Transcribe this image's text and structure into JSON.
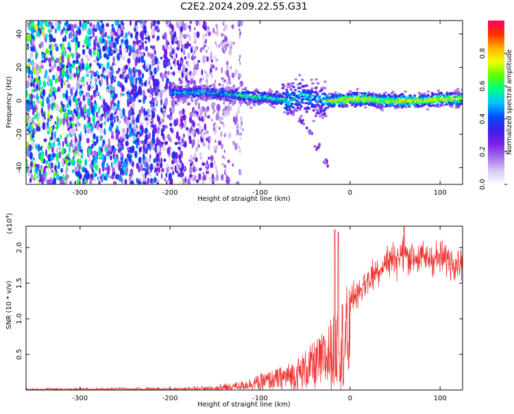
{
  "title": "C2E2.2024.209.22.55.G31",
  "chart_data": [
    {
      "type": "heatmap",
      "xlabel": "Height of straight line (km)",
      "ylabel": "Frequency (Hz)",
      "xlim": [
        -360,
        125
      ],
      "ylim": [
        -50,
        48
      ],
      "xticks": [
        -300,
        -200,
        -100,
        0,
        100
      ],
      "yticks": [
        -40,
        -20,
        0,
        20,
        40
      ],
      "colorbar": {
        "label": "Normalized spectral amplitude",
        "range": [
          0,
          1
        ],
        "ticks": [
          0.0,
          0.2,
          0.4,
          0.6,
          0.8
        ],
        "colors": [
          "#ffffff",
          "#d9c8f2",
          "#a06ee6",
          "#7a1fe6",
          "#3a1fe6",
          "#0050ff",
          "#00c8ff",
          "#00ff80",
          "#60ff00",
          "#f0ff00",
          "#ffb000",
          "#ff3000",
          "#ff0060"
        ]
      },
      "signal_band": [
        {
          "x": -200,
          "y": 5,
          "a": 0.45
        },
        {
          "x": -180,
          "y": 5,
          "a": 0.5
        },
        {
          "x": -160,
          "y": 5,
          "a": 0.5
        },
        {
          "x": -140,
          "y": 4,
          "a": 0.5
        },
        {
          "x": -120,
          "y": 3,
          "a": 0.55
        },
        {
          "x": -100,
          "y": 2,
          "a": 0.55
        },
        {
          "x": -80,
          "y": 1,
          "a": 0.55
        },
        {
          "x": -65,
          "y": 0,
          "a": 0.5
        },
        {
          "x": -55,
          "y": 3,
          "a": 0.5
        },
        {
          "x": -45,
          "y": 2,
          "a": 0.5
        },
        {
          "x": -30,
          "y": 0,
          "a": 0.45
        },
        {
          "x": -20,
          "y": 0,
          "a": 0.75
        },
        {
          "x": 0,
          "y": 1,
          "a": 0.8
        },
        {
          "x": 20,
          "y": 1,
          "a": 0.75
        },
        {
          "x": 40,
          "y": 0,
          "a": 0.7
        },
        {
          "x": 60,
          "y": 0,
          "a": 0.8
        },
        {
          "x": 80,
          "y": 0,
          "a": 0.8
        },
        {
          "x": 100,
          "y": 1,
          "a": 0.75
        },
        {
          "x": 125,
          "y": 1,
          "a": 0.75
        }
      ],
      "branch": [
        {
          "x": -65,
          "y": -6
        },
        {
          "x": -55,
          "y": -12
        },
        {
          "x": -45,
          "y": -20
        },
        {
          "x": -35,
          "y": -28
        },
        {
          "x": -27,
          "y": -37
        }
      ]
    },
    {
      "type": "line",
      "xlabel": "Height of straight line (km)",
      "ylabel": "SNR (10 * v/v)",
      "yscale_label": "(x10",
      "yscale_exp": "4",
      "yscale_close": ")",
      "xlim": [
        -360,
        125
      ],
      "ylim": [
        0,
        2.3
      ],
      "xticks": [
        -300,
        -200,
        -100,
        0,
        100
      ],
      "yticks": [
        0.5,
        1.0,
        1.5,
        2.0
      ],
      "series": [
        {
          "color": "#ee3333",
          "envelope": [
            {
              "x": -360,
              "y": 0.02
            },
            {
              "x": -200,
              "y": 0.03
            },
            {
              "x": -150,
              "y": 0.05
            },
            {
              "x": -120,
              "y": 0.1
            },
            {
              "x": -100,
              "y": 0.18
            },
            {
              "x": -80,
              "y": 0.25
            },
            {
              "x": -60,
              "y": 0.35
            },
            {
              "x": -45,
              "y": 0.5
            },
            {
              "x": -30,
              "y": 0.65
            },
            {
              "x": -20,
              "y": 0.85
            },
            {
              "x": -12,
              "y": 1.0
            },
            {
              "x": 0,
              "y": 1.25
            },
            {
              "x": 20,
              "y": 1.55
            },
            {
              "x": 40,
              "y": 1.8
            },
            {
              "x": 60,
              "y": 1.9
            },
            {
              "x": 80,
              "y": 1.85
            },
            {
              "x": 100,
              "y": 1.85
            },
            {
              "x": 125,
              "y": 1.8
            }
          ],
          "peaks": [
            {
              "x": -17,
              "y": 2.25
            },
            {
              "x": -13,
              "y": 2.22
            },
            {
              "x": 60,
              "y": 2.3
            }
          ]
        }
      ]
    }
  ]
}
